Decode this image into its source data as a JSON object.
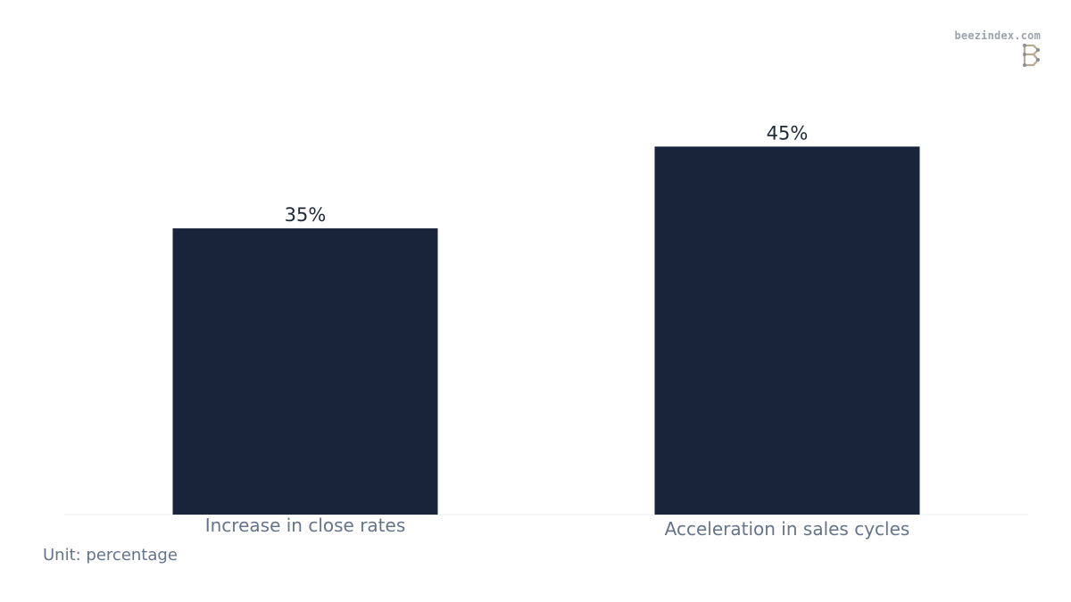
{
  "brand": {
    "site": "beezindex.com",
    "logo_icon": "b-logo-icon"
  },
  "note": "Unit: percentage",
  "colors": {
    "bar": "#18243a",
    "value_label": "#1f2937",
    "category_label": "#64748b",
    "baseline": "#f1f3f5"
  },
  "chart_data": {
    "type": "bar",
    "categories": [
      "Increase in close rates",
      "Acceleration in sales cycles"
    ],
    "values": [
      35,
      45
    ],
    "value_labels": [
      "35%",
      "45%"
    ],
    "title": "",
    "xlabel": "",
    "ylabel": "",
    "ylim": [
      0,
      50
    ],
    "grid": false,
    "legend": "none"
  }
}
